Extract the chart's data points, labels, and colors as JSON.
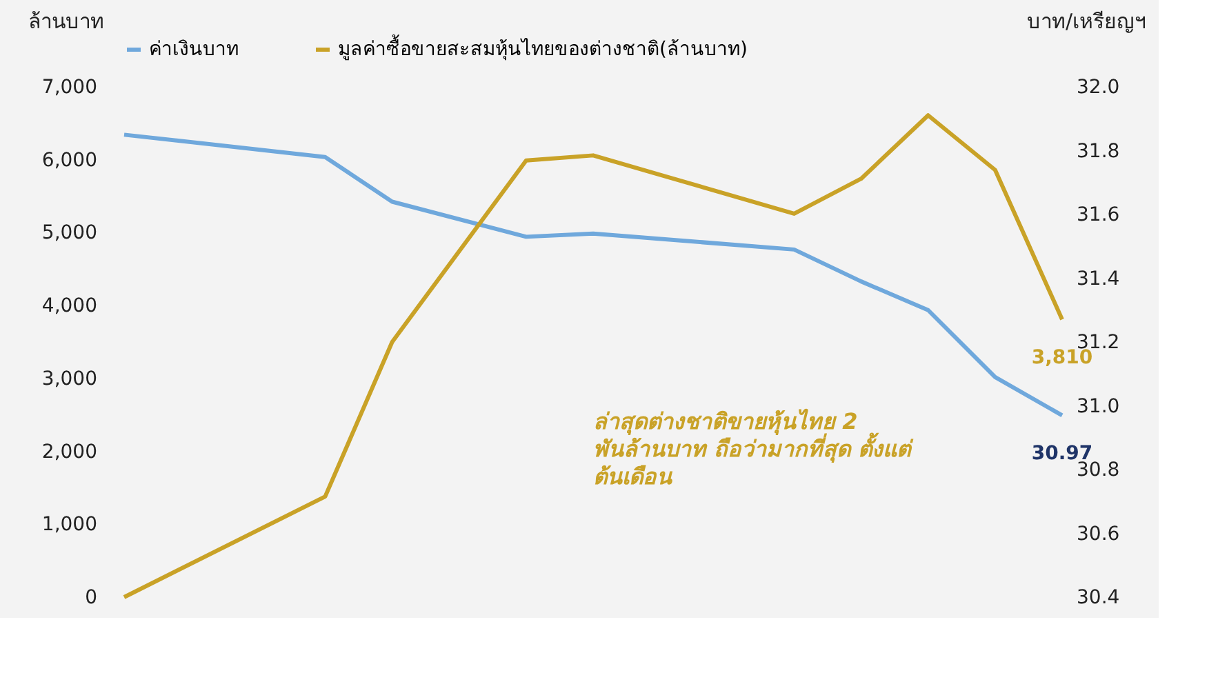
{
  "chart_data": {
    "type": "line",
    "ylabel": "ล้านบาท",
    "y2label": "บาท/เหรียญฯ",
    "categories": [
      null,
      null,
      null,
      null,
      null,
      null,
      null,
      null,
      null,
      null,
      null,
      null,
      null,
      null,
      null
    ],
    "ylim": [
      0,
      7000
    ],
    "yticks": [
      {
        "value": 0,
        "label": "0"
      },
      {
        "value": 1000,
        "label": "1,000"
      },
      {
        "value": 2000,
        "label": "2,000"
      },
      {
        "value": 3000,
        "label": "3,000"
      },
      {
        "value": 4000,
        "label": "4,000"
      },
      {
        "value": 5000,
        "label": "5,000"
      },
      {
        "value": 6000,
        "label": "6,000"
      },
      {
        "value": 7000,
        "label": "7,000"
      }
    ],
    "y2lim": [
      30.4,
      32.0
    ],
    "y2ticks": [
      {
        "value": 30.4,
        "label": "30.4"
      },
      {
        "value": 30.6,
        "label": "30.6"
      },
      {
        "value": 30.8,
        "label": "30.8"
      },
      {
        "value": 31.0,
        "label": "31.0"
      },
      {
        "value": 31.2,
        "label": "31.2"
      },
      {
        "value": 31.4,
        "label": "31.4"
      },
      {
        "value": 31.6,
        "label": "31.6"
      },
      {
        "value": 31.8,
        "label": "31.8"
      },
      {
        "value": 32.0,
        "label": "32.0"
      }
    ],
    "series": [
      {
        "name": "ค่าเงินบาท",
        "color": "#6fa8dc",
        "axis": "y2",
        "values": [
          31.85,
          null,
          null,
          31.78,
          31.64,
          null,
          31.53,
          31.54,
          null,
          null,
          31.49,
          31.39,
          31.3,
          31.09,
          30.97
        ],
        "value_labels": [
          null,
          null,
          null,
          null,
          null,
          null,
          null,
          null,
          null,
          null,
          null,
          null,
          null,
          null,
          "30.97"
        ]
      },
      {
        "name": "มูลค่าซื้อขายสะสมหุ้นไทยของต่างชาติ(ล้านบาท)",
        "color": "#c9a227",
        "axis": "y",
        "values": [
          0,
          null,
          null,
          1380,
          3500,
          null,
          5990,
          6060,
          null,
          null,
          5260,
          5740,
          6610,
          5860,
          3810
        ],
        "value_labels": [
          null,
          null,
          null,
          null,
          null,
          null,
          null,
          null,
          null,
          null,
          null,
          null,
          null,
          null,
          "3,810"
        ]
      }
    ],
    "annotations": [
      "ล่าสุดต่างชาติขายหุ้นไทย 2\nพันล้านบาท ถือว่ามากที่สุด ตั้งแต่\nต้นเดือน"
    ],
    "legend": "top",
    "grid": false,
    "tick_labels": "y",
    "line_style": "solid",
    "marker": "none"
  }
}
